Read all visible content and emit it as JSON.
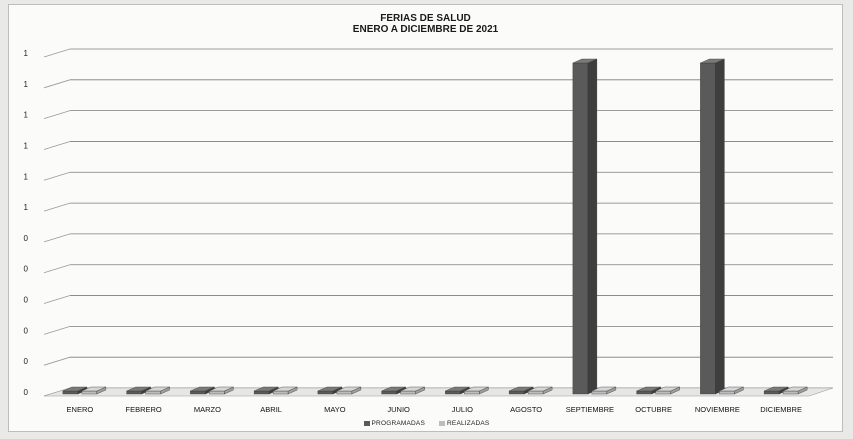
{
  "chart_data": {
    "type": "bar",
    "title": "FERIAS DE SALUD",
    "subtitle": "ENERO A DICIEMBRE DE 2021",
    "categories": [
      "ENERO",
      "FEBRERO",
      "MARZO",
      "ABRIL",
      "MAYO",
      "JUNIO",
      "JULIO",
      "AGOSTO",
      "SEPTIEMBRE",
      "OCTUBRE",
      "NOVIEMBRE",
      "DICIEMBRE"
    ],
    "series": [
      {
        "name": "PROGRAMADAS",
        "color": "#5a5a5a",
        "values": [
          0,
          0,
          0,
          0,
          0,
          0,
          0,
          0,
          1,
          0,
          1,
          0
        ]
      },
      {
        "name": "REALIZADAS",
        "color": "#bdbdbd",
        "values": [
          0,
          0,
          0,
          0,
          0,
          0,
          0,
          0,
          0,
          0,
          0,
          0
        ]
      }
    ],
    "y_tick_labels": [
      "0",
      "0",
      "0",
      "0",
      "0",
      "0",
      "1",
      "1",
      "1",
      "1",
      "1",
      "1"
    ],
    "ylim": [
      0,
      1.1
    ],
    "grid": true,
    "legend": "bottom"
  }
}
